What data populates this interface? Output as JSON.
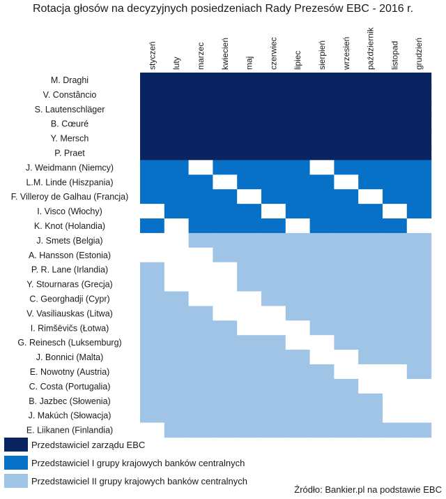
{
  "chart_data": {
    "type": "heatmap",
    "title": "Rotacja głosów na decyzyjnych posiedzeniach Rady Prezesów EBC - 2016 r.",
    "months": [
      "styczeń",
      "luty",
      "marzec",
      "kwiecień",
      "maj",
      "czerwiec",
      "lipiec",
      "sierpień",
      "wrzesień",
      "październik",
      "listopad",
      "grudzień"
    ],
    "rows": [
      {
        "name": "M. Draghi",
        "group": "board",
        "absent": []
      },
      {
        "name": "V. Constâncio",
        "group": "board",
        "absent": []
      },
      {
        "name": "S. Lautenschläger",
        "group": "board",
        "absent": []
      },
      {
        "name": "B. Cœuré",
        "group": "board",
        "absent": []
      },
      {
        "name": "Y. Mersch",
        "group": "board",
        "absent": []
      },
      {
        "name": "P. Praet",
        "group": "board",
        "absent": []
      },
      {
        "name": "J. Weidmann (Niemcy)",
        "group": "group1",
        "absent": [
          3,
          8
        ]
      },
      {
        "name": "L.M. Linde (Hiszpania)",
        "group": "group1",
        "absent": [
          4,
          9
        ]
      },
      {
        "name": "F. Villeroy de Galhau (Francja)",
        "group": "group1",
        "absent": [
          5,
          10
        ]
      },
      {
        "name": "I. Visco (Włochy)",
        "group": "group1",
        "absent": [
          1,
          6,
          11
        ]
      },
      {
        "name": "K. Knot (Holandia)",
        "group": "group1",
        "absent": [
          2,
          7,
          12
        ]
      },
      {
        "name": "J. Smets (Belgia)",
        "group": "group2",
        "absent": [
          1,
          2
        ]
      },
      {
        "name": "A. Hansson (Estonia)",
        "group": "group2",
        "absent": [
          1,
          2,
          3
        ]
      },
      {
        "name": "P. R. Lane (Irlandia)",
        "group": "group2",
        "absent": [
          2,
          3,
          4
        ]
      },
      {
        "name": "Y. Stournaras (Grecja)",
        "group": "group2",
        "absent": [
          2,
          3,
          4
        ]
      },
      {
        "name": "C. Georghadji (Cypr)",
        "group": "group2",
        "absent": [
          3,
          4,
          5
        ]
      },
      {
        "name": "V. Vasiliauskas (Litwa)",
        "group": "group2",
        "absent": [
          4,
          5,
          6
        ]
      },
      {
        "name": "I. Rimšēvičs (Łotwa)",
        "group": "group2",
        "absent": [
          5,
          6,
          7
        ]
      },
      {
        "name": "G. Reinesch (Luksemburg)",
        "group": "group2",
        "absent": [
          7,
          8
        ]
      },
      {
        "name": "J. Bonnici (Malta)",
        "group": "group2",
        "absent": [
          8,
          9
        ]
      },
      {
        "name": "E. Nowotny (Austria)",
        "group": "group2",
        "absent": [
          9,
          10,
          11
        ]
      },
      {
        "name": "C. Costa (Portugalia)",
        "group": "group2",
        "absent": [
          10,
          11,
          12
        ]
      },
      {
        "name": "B. Jazbec (Słowenia)",
        "group": "group2",
        "absent": [
          11,
          12
        ]
      },
      {
        "name": "J. Makúch (Słowacja)",
        "group": "group2",
        "absent": [
          11,
          12
        ]
      },
      {
        "name": "E. Liikanen (Finlandia)",
        "group": "group2",
        "absent": [
          1
        ]
      }
    ],
    "colors": {
      "board": "#0a2462",
      "group1": "#0671c6",
      "group2": "#9fc4e6",
      "absent": "#ffffff"
    },
    "legend": [
      {
        "group": "board",
        "label": "Przedstawiciel zarządu EBC"
      },
      {
        "group": "group1",
        "label": "Przedstawiciel I grupy krajowych banków centralnych"
      },
      {
        "group": "group2",
        "label": "Przedstawiciel II grupy krajowych banków centralnych"
      }
    ],
    "source": "Źródło: Bankier.pl na podstawie EBC"
  }
}
